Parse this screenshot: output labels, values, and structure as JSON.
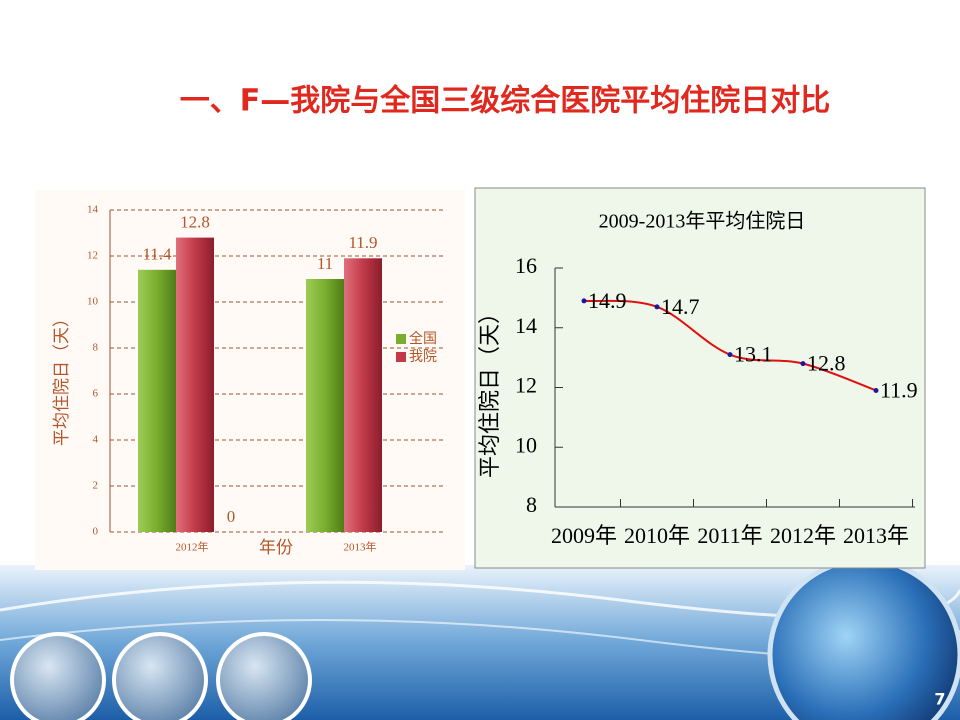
{
  "title": "一、F—我院与全国三级综合医院平均住院日对比",
  "page_number": "7",
  "chart_data": [
    {
      "type": "bar",
      "xlabel": "年份",
      "ylabel": "平均住院日（天）",
      "categories": [
        "2012年",
        "2013年"
      ],
      "series": [
        {
          "name": "全国",
          "color": "#7aae2e",
          "values": [
            11.4,
            11
          ]
        },
        {
          "name": "我院",
          "color": "#c23a4a",
          "values": [
            12.8,
            11.9
          ]
        }
      ],
      "annotations": [
        "0"
      ],
      "ylim": [
        0,
        14
      ],
      "yticks": [
        0,
        2,
        4,
        6,
        8,
        10,
        12,
        14
      ],
      "grid": true,
      "legend": "right"
    },
    {
      "type": "line",
      "title": "2009-2013年平均住院日",
      "ylabel": "平均住院日（天）",
      "categories": [
        "2009年",
        "2010年",
        "2011年",
        "2012年",
        "2013年"
      ],
      "values": [
        14.9,
        14.7,
        13.1,
        12.8,
        11.9
      ],
      "color": "#e01010",
      "marker_color": "#1a1aa0",
      "ylim": [
        8,
        16
      ],
      "yticks": [
        8,
        10,
        12,
        14,
        16
      ],
      "grid": false
    }
  ]
}
